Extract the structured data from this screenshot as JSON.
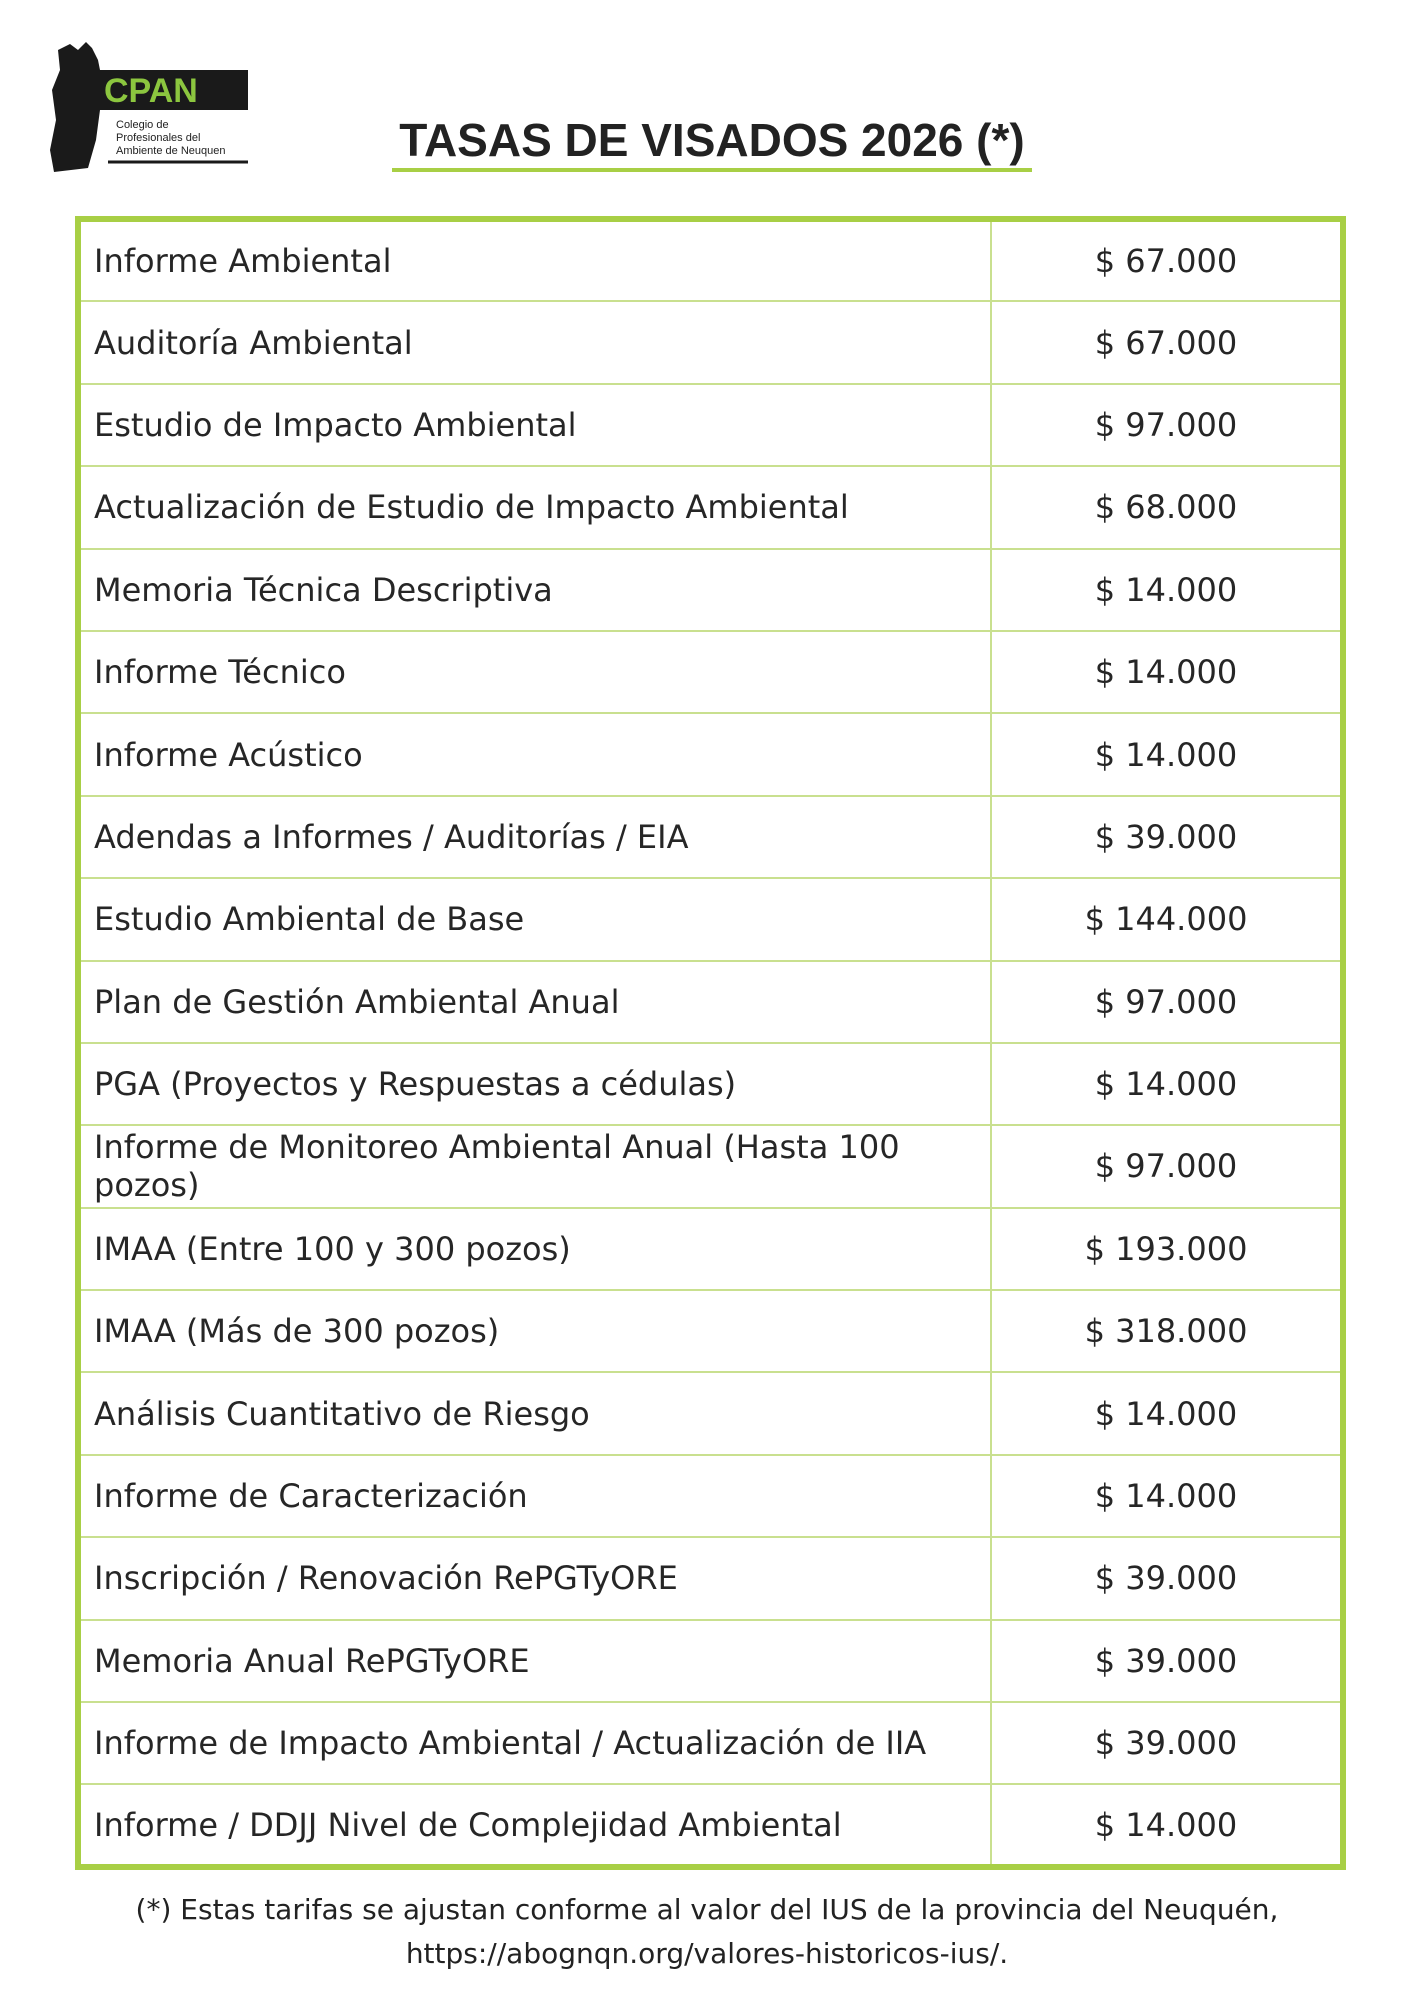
{
  "logo": {
    "name": "CPAN",
    "lines": [
      "Colegio de",
      "Profesionales del",
      "Ambiente de Neuquen"
    ]
  },
  "header": {
    "title": "TASAS DE VISADOS 2026 (*)"
  },
  "table": {
    "rows": [
      [
        "Informe Ambiental",
        "$ 67.000"
      ],
      [
        "Auditoría Ambiental",
        "$ 67.000"
      ],
      [
        "Estudio de Impacto Ambiental",
        "$ 97.000"
      ],
      [
        "Actualización de Estudio de Impacto Ambiental",
        "$ 68.000"
      ],
      [
        "Memoria Técnica Descriptiva",
        "$ 14.000"
      ],
      [
        "Informe Técnico",
        "$ 14.000"
      ],
      [
        "Informe Acústico",
        "$ 14.000"
      ],
      [
        "Adendas a Informes / Auditorías / EIA",
        "$ 39.000"
      ],
      [
        "Estudio Ambiental de Base",
        "$ 144.000"
      ],
      [
        "Plan de Gestión Ambiental Anual",
        "$ 97.000"
      ],
      [
        "PGA (Proyectos y Respuestas a cédulas)",
        "$ 14.000"
      ],
      [
        "Informe de Monitoreo Ambiental Anual (Hasta 100 pozos)",
        "$ 97.000"
      ],
      [
        "IMAA (Entre 100 y 300 pozos)",
        "$ 193.000"
      ],
      [
        "IMAA (Más de 300 pozos)",
        "$ 318.000"
      ],
      [
        "Análisis Cuantitativo de Riesgo",
        "$ 14.000"
      ],
      [
        "Informe de Caracterización",
        "$ 14.000"
      ],
      [
        "Inscripción / Renovación RePGTyORE",
        "$ 39.000"
      ],
      [
        "Memoria Anual RePGTyORE",
        "$ 39.000"
      ],
      [
        "Informe de Impacto Ambiental / Actualización de IIA",
        "$ 39.000"
      ],
      [
        "Informe / DDJJ Nivel de Complejidad Ambiental",
        "$ 14.000"
      ]
    ]
  },
  "footnote": [
    "(*) Estas tarifas se ajustan conforme al valor del IUS de la provincia del Neuquén,",
    "https://abognqn.org/valores-historicos-ius/."
  ]
}
